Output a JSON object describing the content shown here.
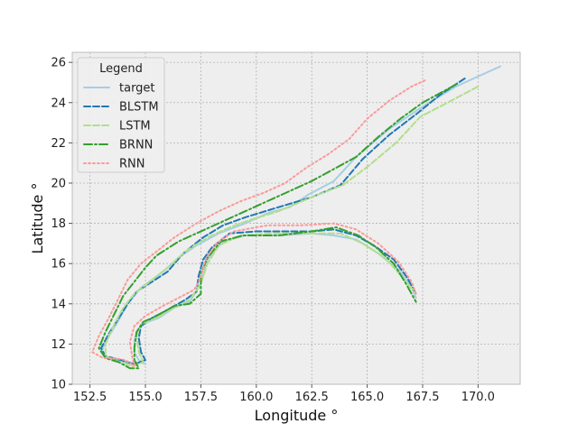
{
  "chart_data": {
    "type": "line",
    "xlabel": "Longitude °",
    "ylabel": "Latitude °",
    "xlim": [
      151.7,
      171.9
    ],
    "ylim": [
      10,
      26.5
    ],
    "xticks": [
      "152.5",
      "155.0",
      "157.5",
      "160.0",
      "162.5",
      "165.0",
      "167.5",
      "170.0"
    ],
    "yticks": [
      "10",
      "12",
      "14",
      "16",
      "18",
      "20",
      "22",
      "24",
      "26"
    ],
    "grid": true,
    "legend": {
      "title": "Legend",
      "placement": "top-left"
    },
    "series": [
      {
        "name": "target",
        "color": "#a6cee3",
        "style": "solid",
        "points": [
          [
            171.0,
            25.8
          ],
          [
            169.0,
            24.8
          ],
          [
            167.5,
            23.8
          ],
          [
            166.0,
            22.7
          ],
          [
            164.5,
            21.3
          ],
          [
            163.5,
            20.1
          ],
          [
            162.3,
            19.4
          ],
          [
            161.5,
            18.8
          ],
          [
            160.5,
            18.5
          ],
          [
            159.5,
            18.0
          ],
          [
            158.3,
            17.5
          ],
          [
            157.3,
            16.9
          ],
          [
            156.5,
            16.3
          ],
          [
            155.8,
            15.6
          ],
          [
            155.3,
            15.2
          ],
          [
            154.8,
            14.8
          ],
          [
            154.2,
            14.0
          ],
          [
            153.8,
            13.2
          ],
          [
            153.3,
            12.3
          ],
          [
            153.0,
            11.6
          ],
          [
            153.3,
            11.3
          ],
          [
            153.8,
            11.2
          ],
          [
            154.4,
            11.0
          ],
          [
            154.8,
            11.1
          ],
          [
            155.0,
            11.0
          ],
          [
            154.7,
            11.2
          ],
          [
            154.5,
            11.6
          ],
          [
            154.5,
            12.2
          ],
          [
            154.7,
            12.8
          ],
          [
            155.1,
            13.1
          ],
          [
            155.6,
            13.3
          ],
          [
            156.3,
            13.8
          ],
          [
            157.0,
            14.1
          ],
          [
            157.5,
            15.0
          ],
          [
            157.8,
            16.2
          ],
          [
            158.5,
            17.1
          ],
          [
            159.5,
            17.4
          ],
          [
            161.0,
            17.4
          ],
          [
            162.5,
            17.5
          ],
          [
            163.5,
            17.4
          ],
          [
            164.5,
            17.2
          ],
          [
            165.5,
            16.5
          ],
          [
            166.4,
            15.7
          ],
          [
            167.0,
            14.8
          ],
          [
            167.2,
            14.3
          ]
        ]
      },
      {
        "name": "BLSTM",
        "color": "#1f78b4",
        "style": "dashed",
        "points": [
          [
            169.4,
            25.2
          ],
          [
            168.3,
            24.4
          ],
          [
            167.3,
            23.5
          ],
          [
            166.0,
            22.4
          ],
          [
            164.8,
            21.2
          ],
          [
            163.8,
            19.9
          ],
          [
            162.5,
            19.3
          ],
          [
            161.0,
            18.8
          ],
          [
            159.5,
            18.3
          ],
          [
            158.5,
            17.9
          ],
          [
            157.6,
            17.3
          ],
          [
            156.7,
            16.5
          ],
          [
            156.0,
            15.6
          ],
          [
            155.3,
            15.1
          ],
          [
            154.6,
            14.6
          ],
          [
            154.2,
            14.0
          ],
          [
            153.8,
            13.3
          ],
          [
            153.4,
            12.6
          ],
          [
            153.0,
            11.8
          ],
          [
            153.2,
            11.4
          ],
          [
            153.9,
            11.2
          ],
          [
            154.5,
            11.0
          ],
          [
            155.0,
            11.2
          ],
          [
            154.8,
            11.6
          ],
          [
            154.7,
            12.3
          ],
          [
            154.8,
            12.9
          ],
          [
            155.3,
            13.3
          ],
          [
            156.0,
            13.7
          ],
          [
            156.8,
            14.2
          ],
          [
            157.3,
            14.6
          ],
          [
            157.4,
            15.4
          ],
          [
            157.6,
            16.2
          ],
          [
            158.0,
            16.8
          ],
          [
            158.8,
            17.5
          ],
          [
            160.0,
            17.6
          ],
          [
            161.5,
            17.6
          ],
          [
            162.5,
            17.6
          ],
          [
            163.5,
            17.7
          ],
          [
            164.5,
            17.4
          ],
          [
            165.3,
            16.9
          ],
          [
            166.2,
            16.2
          ],
          [
            166.8,
            15.3
          ],
          [
            167.2,
            14.5
          ]
        ]
      },
      {
        "name": "LSTM",
        "color": "#b2df8a",
        "style": "dashed",
        "points": [
          [
            170.0,
            24.8
          ],
          [
            168.8,
            24.1
          ],
          [
            167.4,
            23.3
          ],
          [
            166.3,
            22.0
          ],
          [
            165.0,
            20.8
          ],
          [
            163.9,
            19.9
          ],
          [
            162.5,
            19.3
          ],
          [
            161.0,
            18.6
          ],
          [
            159.8,
            18.2
          ],
          [
            158.8,
            17.8
          ],
          [
            157.8,
            17.3
          ],
          [
            156.8,
            16.6
          ],
          [
            156.0,
            15.8
          ],
          [
            155.2,
            15.1
          ],
          [
            154.5,
            14.5
          ],
          [
            154.0,
            13.8
          ],
          [
            153.6,
            13.0
          ],
          [
            153.2,
            12.0
          ],
          [
            153.2,
            11.4
          ],
          [
            153.8,
            11.1
          ],
          [
            154.4,
            10.9
          ],
          [
            154.9,
            11.1
          ],
          [
            154.7,
            11.6
          ],
          [
            154.6,
            12.4
          ],
          [
            154.8,
            13.0
          ],
          [
            155.5,
            13.3
          ],
          [
            156.3,
            13.8
          ],
          [
            157.0,
            14.2
          ],
          [
            157.5,
            15.0
          ],
          [
            157.8,
            16.0
          ],
          [
            158.3,
            16.9
          ],
          [
            159.3,
            17.4
          ],
          [
            160.8,
            17.5
          ],
          [
            162.5,
            17.5
          ],
          [
            163.8,
            17.5
          ],
          [
            164.8,
            17.0
          ],
          [
            165.8,
            16.3
          ],
          [
            166.6,
            15.3
          ],
          [
            167.2,
            14.5
          ]
        ]
      },
      {
        "name": "BRNN",
        "color": "#33a02c",
        "style": "dashdot",
        "points": [
          [
            169.0,
            24.9
          ],
          [
            167.5,
            24.0
          ],
          [
            166.5,
            23.2
          ],
          [
            165.5,
            22.3
          ],
          [
            164.5,
            21.3
          ],
          [
            163.5,
            20.7
          ],
          [
            162.5,
            20.1
          ],
          [
            161.5,
            19.6
          ],
          [
            160.5,
            19.1
          ],
          [
            159.5,
            18.6
          ],
          [
            158.5,
            18.1
          ],
          [
            157.5,
            17.6
          ],
          [
            156.5,
            17.1
          ],
          [
            155.5,
            16.4
          ],
          [
            155.0,
            15.8
          ],
          [
            154.5,
            15.1
          ],
          [
            154.0,
            14.4
          ],
          [
            153.6,
            13.5
          ],
          [
            153.2,
            12.6
          ],
          [
            152.9,
            11.8
          ],
          [
            153.2,
            11.3
          ],
          [
            153.8,
            11.1
          ],
          [
            154.3,
            10.8
          ],
          [
            154.7,
            10.8
          ],
          [
            154.5,
            11.2
          ],
          [
            154.5,
            11.8
          ],
          [
            154.6,
            12.6
          ],
          [
            154.9,
            13.1
          ],
          [
            155.5,
            13.4
          ],
          [
            156.3,
            13.9
          ],
          [
            157.0,
            14.0
          ],
          [
            157.5,
            14.5
          ],
          [
            157.5,
            15.5
          ],
          [
            157.8,
            16.3
          ],
          [
            158.4,
            17.1
          ],
          [
            159.4,
            17.4
          ],
          [
            161.0,
            17.4
          ],
          [
            162.5,
            17.6
          ],
          [
            163.6,
            17.8
          ],
          [
            164.6,
            17.4
          ],
          [
            165.4,
            16.8
          ],
          [
            166.2,
            16.0
          ],
          [
            166.8,
            14.9
          ],
          [
            167.2,
            14.1
          ]
        ]
      },
      {
        "name": "RNN",
        "color": "#fb9a99",
        "style": "dotted",
        "points": [
          [
            167.6,
            25.1
          ],
          [
            167.0,
            24.8
          ],
          [
            166.0,
            24.1
          ],
          [
            165.0,
            23.2
          ],
          [
            164.2,
            22.2
          ],
          [
            163.2,
            21.4
          ],
          [
            162.3,
            20.8
          ],
          [
            161.3,
            20.0
          ],
          [
            160.3,
            19.5
          ],
          [
            159.3,
            19.1
          ],
          [
            158.3,
            18.6
          ],
          [
            157.3,
            18.0
          ],
          [
            156.3,
            17.3
          ],
          [
            155.5,
            16.6
          ],
          [
            154.8,
            16.0
          ],
          [
            154.2,
            15.2
          ],
          [
            153.8,
            14.3
          ],
          [
            153.3,
            13.2
          ],
          [
            152.9,
            12.4
          ],
          [
            152.6,
            11.6
          ],
          [
            153.1,
            11.3
          ],
          [
            153.6,
            11.3
          ],
          [
            154.1,
            11.2
          ],
          [
            154.5,
            10.9
          ],
          [
            154.4,
            11.4
          ],
          [
            154.3,
            12.1
          ],
          [
            154.5,
            12.9
          ],
          [
            155.0,
            13.4
          ],
          [
            155.8,
            13.9
          ],
          [
            156.5,
            14.3
          ],
          [
            157.2,
            14.7
          ],
          [
            157.5,
            15.3
          ],
          [
            157.7,
            16.2
          ],
          [
            158.2,
            17.0
          ],
          [
            159.0,
            17.6
          ],
          [
            160.5,
            17.9
          ],
          [
            162.0,
            17.9
          ],
          [
            163.5,
            18.0
          ],
          [
            164.5,
            17.7
          ],
          [
            165.5,
            17.0
          ],
          [
            166.4,
            16.1
          ],
          [
            167.0,
            15.1
          ],
          [
            167.2,
            14.5
          ]
        ]
      }
    ]
  }
}
